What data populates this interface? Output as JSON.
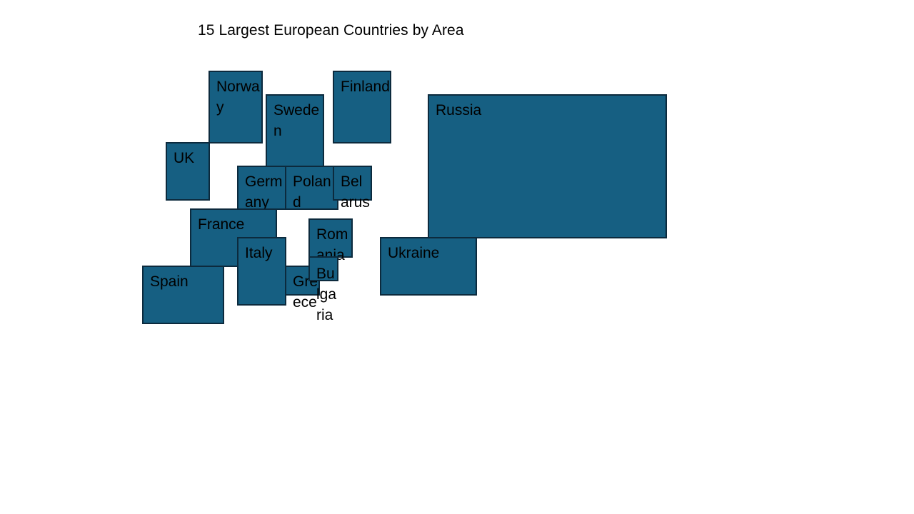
{
  "title": "15 Largest European Countries by Area",
  "colors": {
    "box_fill": "#165f82",
    "box_border": "#0c2a3d",
    "text": "#000000",
    "background": "#ffffff"
  },
  "countries": {
    "russia": "Russia",
    "ukraine": "Ukraine",
    "france": "France",
    "spain": "Spain",
    "sweden": "Sweden",
    "germany": "Germany",
    "finland": "Finland",
    "norway": "Norway",
    "poland": "Poland",
    "italy": "Italy",
    "uk": "UK",
    "romania": "Romania",
    "belarus": "Belarus",
    "greece": "Greece",
    "bulgaria": "Bulgaria"
  }
}
